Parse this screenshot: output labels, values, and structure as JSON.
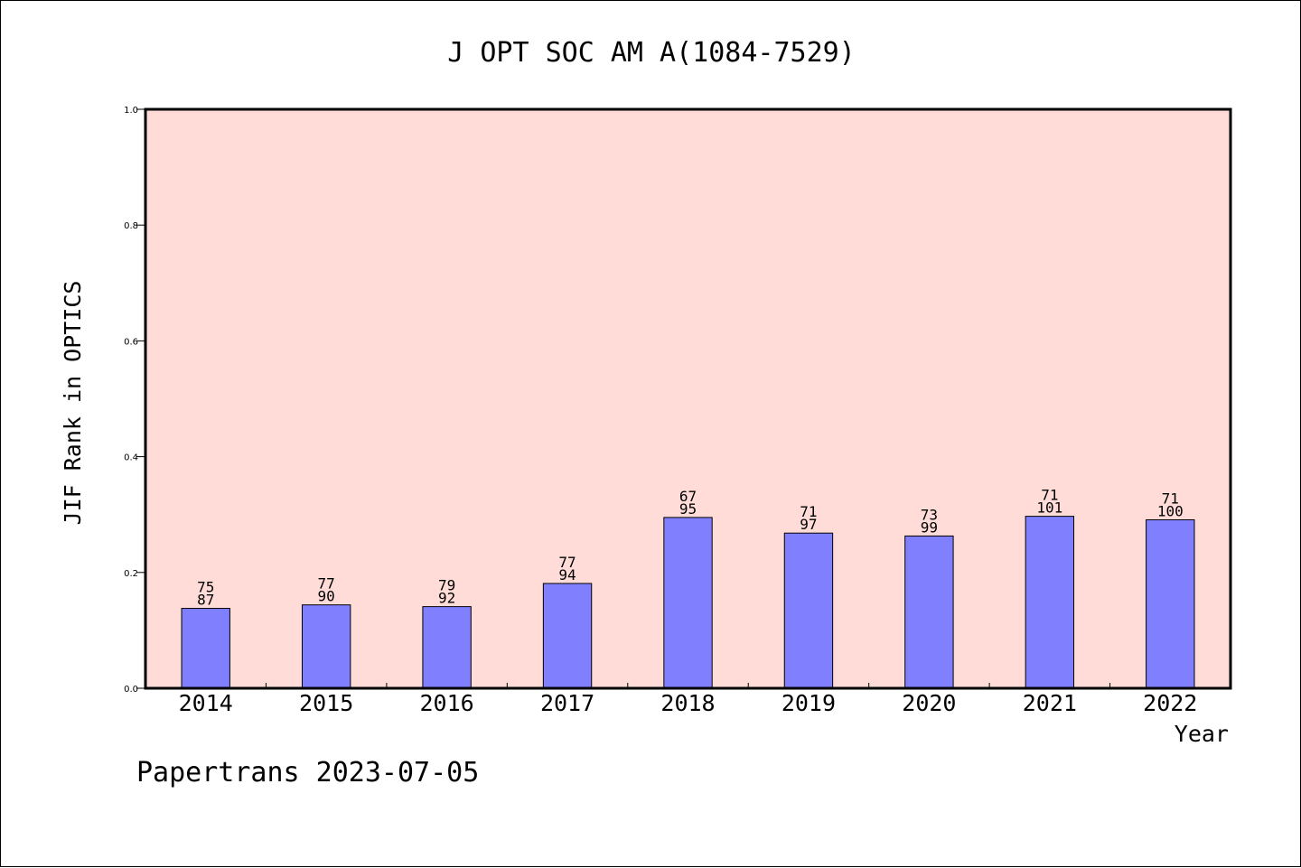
{
  "chart_data": {
    "type": "bar",
    "title": "J OPT SOC AM A(1084-7529)",
    "xlabel": "Year",
    "ylabel": "JIF Rank in OPTICS",
    "categories": [
      "2014",
      "2015",
      "2016",
      "2017",
      "2018",
      "2019",
      "2020",
      "2021",
      "2022"
    ],
    "values": [
      0.138,
      0.144,
      0.141,
      0.181,
      0.295,
      0.268,
      0.263,
      0.297,
      0.291
    ],
    "rank": [
      "75",
      "77",
      "79",
      "77",
      "67",
      "71",
      "73",
      "71",
      "71"
    ],
    "total": [
      "87",
      "90",
      "92",
      "94",
      "95",
      "97",
      "99",
      "101",
      "100"
    ],
    "ylim": [
      0,
      1.0
    ],
    "yticks": [
      "0.0",
      "0.2",
      "0.4",
      "0.6",
      "0.8",
      "1.0"
    ],
    "grid": false,
    "colors": {
      "bar": "#8080ff",
      "plot_bg": "#ffdcd8"
    }
  },
  "footer": "Papertrans 2023-07-05"
}
